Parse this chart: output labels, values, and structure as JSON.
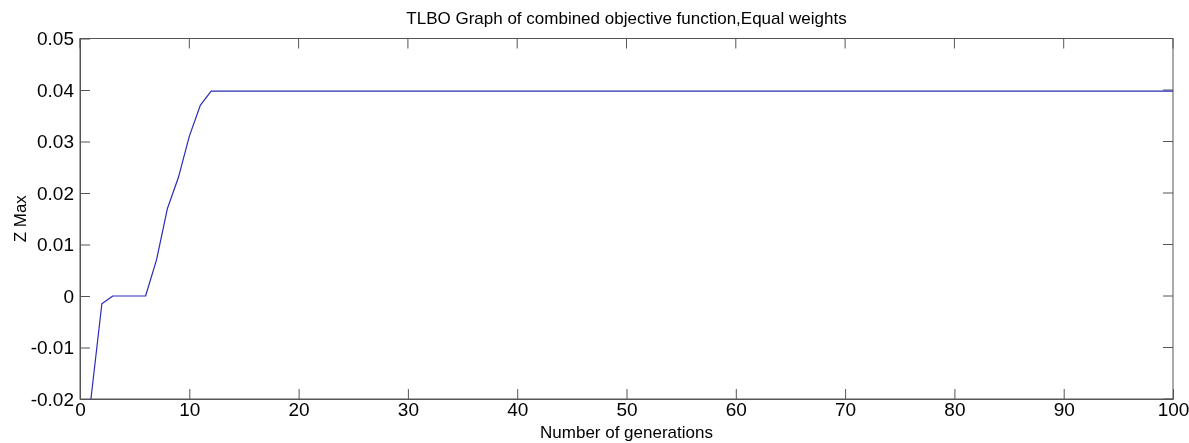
{
  "chart_data": {
    "type": "line",
    "title": "TLBO Graph of combined objective function,Equal weights",
    "xlabel": "Number of generations",
    "ylabel": "Z Max",
    "x": [
      1,
      2,
      3,
      4,
      5,
      6,
      7,
      8,
      9,
      10,
      11,
      12,
      100
    ],
    "series": [
      {
        "color": "#2b2bb8",
        "values": [
          -0.02,
          -0.0015,
          0,
          0,
          0,
          0,
          0.007,
          0.017,
          0.023,
          0.031,
          0.037,
          0.0398,
          0.0398
        ]
      }
    ],
    "xlim": [
      0,
      100
    ],
    "xticks": [
      0,
      10,
      20,
      30,
      40,
      50,
      60,
      70,
      80,
      90,
      100
    ],
    "ylim": [
      -0.02,
      0.05
    ],
    "yticks": [
      -0.02,
      -0.01,
      0,
      0.01,
      0.02,
      0.03,
      0.04,
      0.05
    ],
    "grid": false,
    "marker": "none",
    "line_style": "solid"
  }
}
